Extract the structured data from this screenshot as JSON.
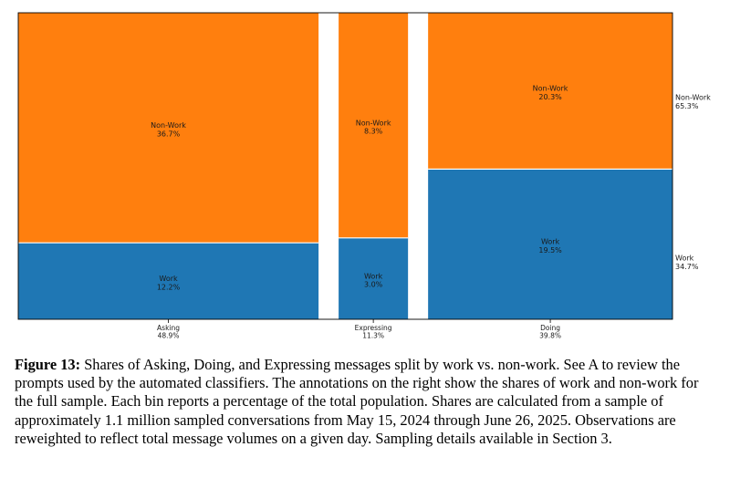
{
  "chart_data": {
    "type": "mosaic",
    "categories": [
      {
        "name": "Asking",
        "share": "48.9%",
        "value": 48.9,
        "segments": [
          {
            "label": "Work",
            "value": "12.2%"
          },
          {
            "label": "Non-Work",
            "value": "36.7%"
          }
        ]
      },
      {
        "name": "Expressing",
        "share": "11.3%",
        "value": 11.3,
        "segments": [
          {
            "label": "Work",
            "value": "3.0%"
          },
          {
            "label": "Non-Work",
            "value": "8.3%"
          }
        ]
      },
      {
        "name": "Doing",
        "share": "39.8%",
        "value": 39.8,
        "segments": [
          {
            "label": "Work",
            "value": "19.5%"
          },
          {
            "label": "Non-Work",
            "value": "20.3%"
          }
        ]
      }
    ],
    "totals": [
      {
        "label": "Non-Work",
        "value": "65.3%"
      },
      {
        "label": "Work",
        "value": "34.7%"
      }
    ],
    "colors": {
      "Work": "#1f77b4",
      "Non-Work": "#ff7f0e"
    }
  },
  "caption": {
    "label": "Figure 13:",
    "text": "Shares of Asking, Doing, and Expressing messages split by work vs. non-work. See A to review the prompts used by the automated classifiers. The annotations on the right show the shares of work and non-work for the full sample. Each bin reports a percentage of the total population. Shares are calculated from a sample of approximately 1.1 million sampled conversations from May 15, 2024 through June 26, 2025. Observations are reweighted to reflect total message volumes on a given day. Sampling details available in Section 3."
  }
}
